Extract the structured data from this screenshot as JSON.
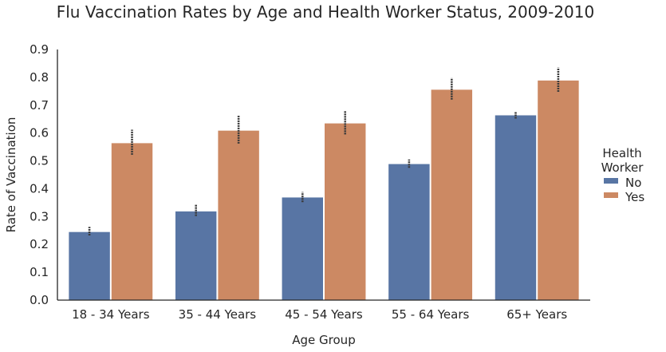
{
  "chart_data": {
    "type": "bar",
    "title": "Flu Vaccination Rates by Age and Health Worker Status, 2009-2010",
    "xlabel": "Age Group",
    "ylabel": "Rate of Vaccination",
    "categories": [
      "18 - 34 Years",
      "35 - 44 Years",
      "45 - 54 Years",
      "55 - 64 Years",
      "65+ Years"
    ],
    "ylim": [
      0,
      0.9
    ],
    "yticks": [
      "0.0",
      "0.1",
      "0.2",
      "0.3",
      "0.4",
      "0.5",
      "0.6",
      "0.7",
      "0.8",
      "0.9"
    ],
    "grid": false,
    "legend": {
      "title_lines": [
        "Health",
        "Worker"
      ],
      "placement": "right"
    },
    "series": [
      {
        "name": "No",
        "color": "#5875a4",
        "values": [
          0.246,
          0.32,
          0.37,
          0.49,
          0.665
        ],
        "ci": [
          [
            0.232,
            0.263
          ],
          [
            0.302,
            0.342
          ],
          [
            0.352,
            0.388
          ],
          [
            0.475,
            0.505
          ],
          [
            0.652,
            0.678
          ]
        ]
      },
      {
        "name": "Yes",
        "color": "#cc8963",
        "values": [
          0.565,
          0.61,
          0.636,
          0.757,
          0.79
        ],
        "ci": [
          [
            0.522,
            0.612
          ],
          [
            0.562,
            0.662
          ],
          [
            0.595,
            0.68
          ],
          [
            0.72,
            0.798
          ],
          [
            0.748,
            0.835
          ]
        ]
      }
    ]
  }
}
